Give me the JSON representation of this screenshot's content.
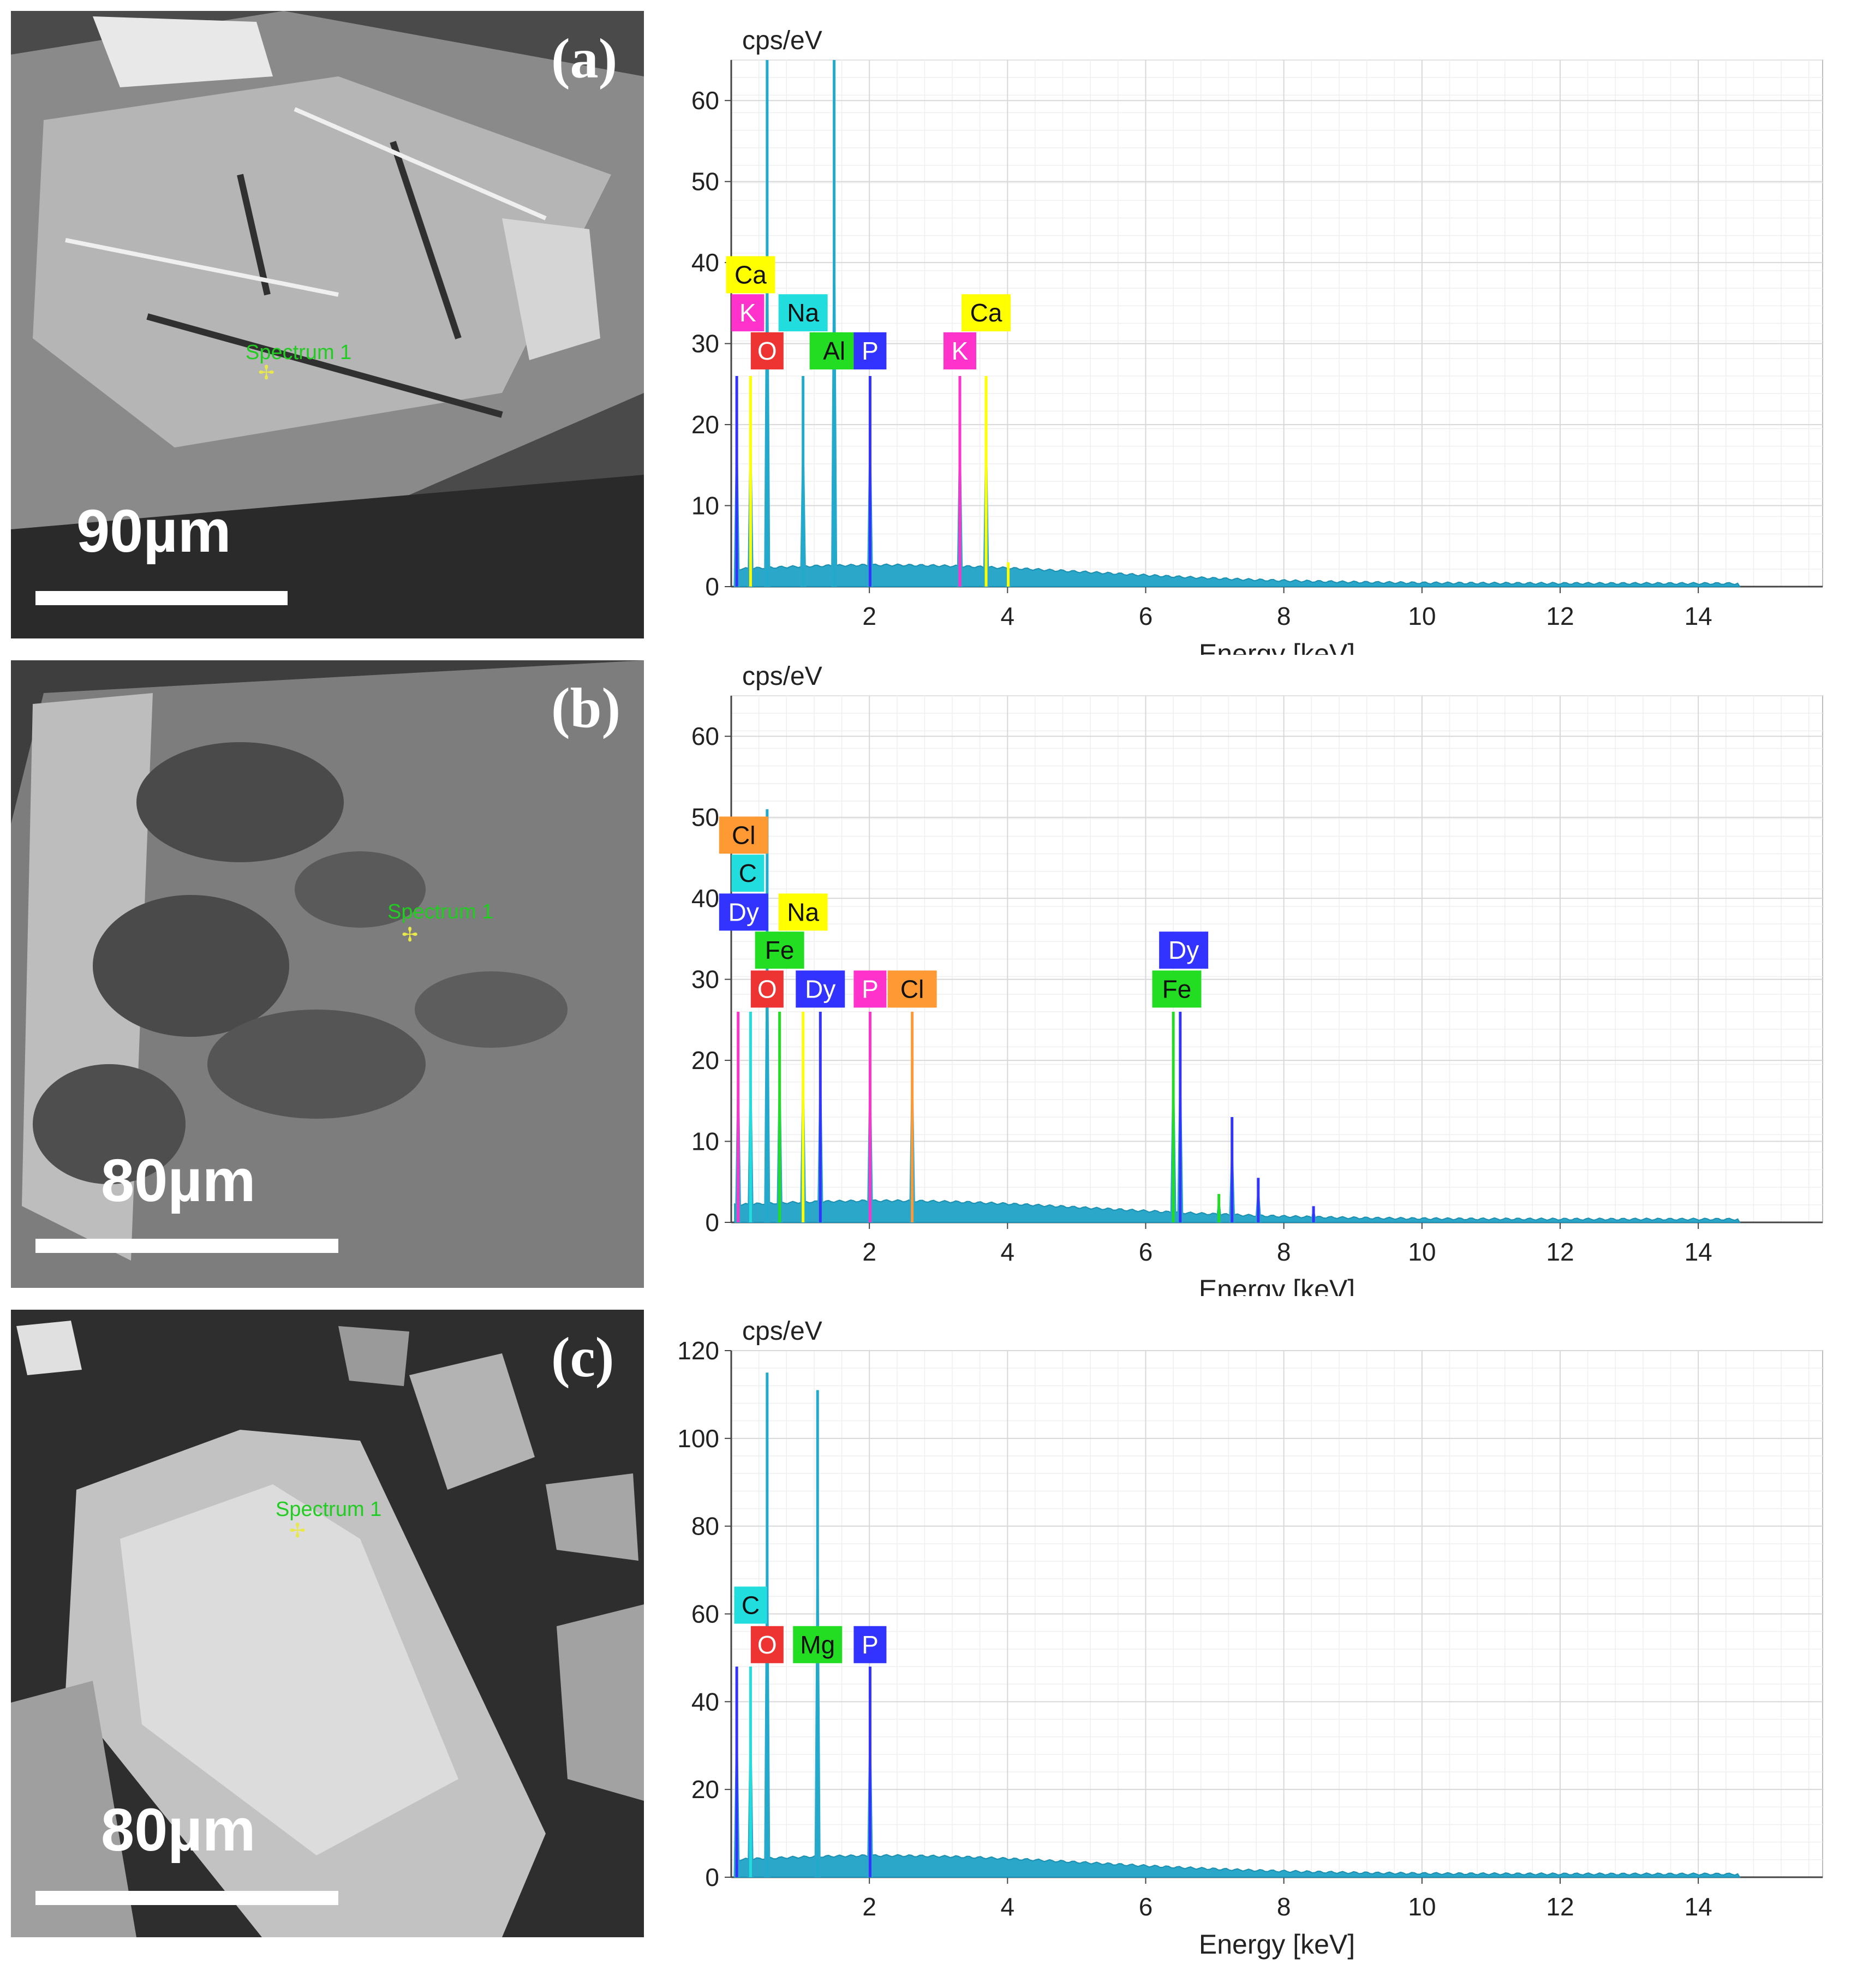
{
  "panels": [
    {
      "letter": "(a)",
      "scale_label": "90µm",
      "spectrum_label": "Spectrum 1"
    },
    {
      "letter": "(b)",
      "scale_label": "80µm",
      "spectrum_label": "Spectrum 1"
    },
    {
      "letter": "(c)",
      "scale_label": "80µm",
      "spectrum_label": "Spectrum 1"
    }
  ],
  "chart_data": [
    {
      "type": "line",
      "ylabel": "cps/eV",
      "xlabel": "Energy [keV]",
      "xlim": [
        0,
        15.8
      ],
      "ylim": [
        0,
        65
      ],
      "xticks": [
        2,
        4,
        6,
        8,
        10,
        12,
        14
      ],
      "yticks": [
        0,
        10,
        20,
        30,
        40,
        50,
        60
      ],
      "grid": true,
      "peaks": [
        {
          "x": 0.08,
          "y": 26,
          "color": "#3333ff"
        },
        {
          "x": 0.28,
          "y": 26,
          "color": "#ffff00"
        },
        {
          "x": 0.52,
          "y": 65,
          "color": "#22aacc"
        },
        {
          "x": 1.04,
          "y": 26,
          "color": "#22aacc"
        },
        {
          "x": 1.49,
          "y": 65,
          "color": "#22aacc"
        },
        {
          "x": 2.01,
          "y": 26,
          "color": "#3333ff"
        },
        {
          "x": 3.31,
          "y": 26,
          "color": "#ff33cc"
        },
        {
          "x": 3.69,
          "y": 26,
          "color": "#ffff00"
        },
        {
          "x": 4.01,
          "y": 3,
          "color": "#ffff00"
        }
      ],
      "labels": [
        {
          "text": "Ca",
          "x": 0.28,
          "y": 38.5,
          "color": "#ffff00"
        },
        {
          "text": "K",
          "x": 0.24,
          "y": 33.8,
          "color": "#ff33cc"
        },
        {
          "text": "Na",
          "x": 1.04,
          "y": 33.8,
          "color": "#22dddd"
        },
        {
          "text": "O",
          "x": 0.52,
          "y": 29.1,
          "color": "#ee3333"
        },
        {
          "text": "Al",
          "x": 1.49,
          "y": 29.1,
          "color": "#22dd22"
        },
        {
          "text": "P",
          "x": 2.01,
          "y": 29.1,
          "color": "#3333ff"
        },
        {
          "text": "Ca",
          "x": 3.69,
          "y": 33.8,
          "color": "#ffff00"
        },
        {
          "text": "K",
          "x": 3.31,
          "y": 29.1,
          "color": "#ff33cc"
        }
      ]
    },
    {
      "type": "line",
      "ylabel": "cps/eV",
      "xlabel": "Energy [keV]",
      "xlim": [
        0,
        15.8
      ],
      "ylim": [
        0,
        65
      ],
      "xticks": [
        2,
        4,
        6,
        8,
        10,
        12,
        14
      ],
      "yticks": [
        0,
        10,
        20,
        30,
        40,
        50,
        60
      ],
      "grid": true,
      "peaks": [
        {
          "x": 0.1,
          "y": 26,
          "color": "#ff33cc"
        },
        {
          "x": 0.28,
          "y": 26,
          "color": "#22dddd"
        },
        {
          "x": 0.52,
          "y": 51,
          "color": "#22aacc"
        },
        {
          "x": 0.7,
          "y": 26,
          "color": "#22dd22"
        },
        {
          "x": 1.04,
          "y": 26,
          "color": "#ffff00"
        },
        {
          "x": 1.29,
          "y": 26,
          "color": "#3333ff"
        },
        {
          "x": 2.01,
          "y": 26,
          "color": "#ff33cc"
        },
        {
          "x": 2.62,
          "y": 26,
          "color": "#ff9933"
        },
        {
          "x": 6.4,
          "y": 26,
          "color": "#22dd22"
        },
        {
          "x": 6.5,
          "y": 26,
          "color": "#3333ff"
        },
        {
          "x": 7.25,
          "y": 13,
          "color": "#3333ff"
        },
        {
          "x": 7.63,
          "y": 5.5,
          "color": "#3333ff"
        },
        {
          "x": 7.06,
          "y": 3.5,
          "color": "#22dd22"
        },
        {
          "x": 8.43,
          "y": 2,
          "color": "#3333ff"
        }
      ],
      "labels": [
        {
          "text": "Cl",
          "x": 0.18,
          "y": 47.8,
          "color": "#ff9933"
        },
        {
          "text": "C",
          "x": 0.24,
          "y": 43.1,
          "color": "#22dddd"
        },
        {
          "text": "Dy",
          "x": 0.18,
          "y": 38.3,
          "color": "#3333ff"
        },
        {
          "text": "Na",
          "x": 1.04,
          "y": 38.3,
          "color": "#ffff00"
        },
        {
          "text": "Fe",
          "x": 0.7,
          "y": 33.6,
          "color": "#22dd22"
        },
        {
          "text": "O",
          "x": 0.52,
          "y": 28.8,
          "color": "#ee3333"
        },
        {
          "text": "Dy",
          "x": 1.29,
          "y": 28.8,
          "color": "#3333ff"
        },
        {
          "text": "P",
          "x": 2.01,
          "y": 28.8,
          "color": "#ff33cc"
        },
        {
          "text": "Cl",
          "x": 2.62,
          "y": 28.8,
          "color": "#ff9933"
        },
        {
          "text": "Dy",
          "x": 6.55,
          "y": 33.6,
          "color": "#3333ff"
        },
        {
          "text": "Fe",
          "x": 6.45,
          "y": 28.8,
          "color": "#22dd22"
        }
      ]
    },
    {
      "type": "line",
      "ylabel": "cps/eV",
      "xlabel": "Energy [keV]",
      "xlim": [
        0,
        15.8
      ],
      "ylim": [
        0,
        120
      ],
      "xticks": [
        2,
        4,
        6,
        8,
        10,
        12,
        14
      ],
      "yticks": [
        0,
        20,
        40,
        60,
        80,
        100,
        120
      ],
      "grid": true,
      "peaks": [
        {
          "x": 0.08,
          "y": 48,
          "color": "#3333ff"
        },
        {
          "x": 0.28,
          "y": 48,
          "color": "#22dddd"
        },
        {
          "x": 0.52,
          "y": 115,
          "color": "#22aacc"
        },
        {
          "x": 1.25,
          "y": 111,
          "color": "#22aacc"
        },
        {
          "x": 2.01,
          "y": 48,
          "color": "#3333ff"
        }
      ],
      "labels": [
        {
          "text": "C",
          "x": 0.28,
          "y": 62,
          "color": "#22dddd"
        },
        {
          "text": "O",
          "x": 0.52,
          "y": 53,
          "color": "#ee3333"
        },
        {
          "text": "Mg",
          "x": 1.25,
          "y": 53,
          "color": "#22dd22"
        },
        {
          "text": "P",
          "x": 2.01,
          "y": 53,
          "color": "#3333ff"
        }
      ]
    }
  ]
}
